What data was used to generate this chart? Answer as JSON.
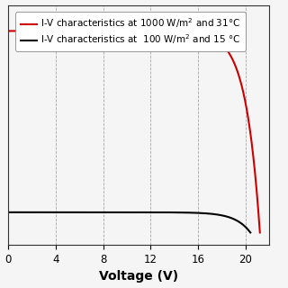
{
  "xlabel": "Voltage (V)",
  "xlim": [
    0,
    22
  ],
  "ylim": [
    -0.5,
    9.2
  ],
  "xticks": [
    0,
    4,
    8,
    12,
    16,
    20
  ],
  "legend_red": "I-V characteristics at 1000 W/m$^2$ and 31°C",
  "legend_black": "I-V characteristics at  100 W/m$^2$ and 15 °C",
  "red_Isc": 8.15,
  "red_Voc": 21.2,
  "red_sharpness": 18,
  "black_Isc": 0.82,
  "black_Voc": 20.4,
  "black_sharpness": 16,
  "red_color": "#cc0000",
  "black_color": "#000000",
  "bg_color": "#f5f5f5",
  "grid_color": "#999999",
  "grid_linestyle": "--",
  "linewidth": 1.5,
  "xlabel_fontsize": 10,
  "legend_fontsize": 7.5,
  "tick_fontsize": 8.5
}
